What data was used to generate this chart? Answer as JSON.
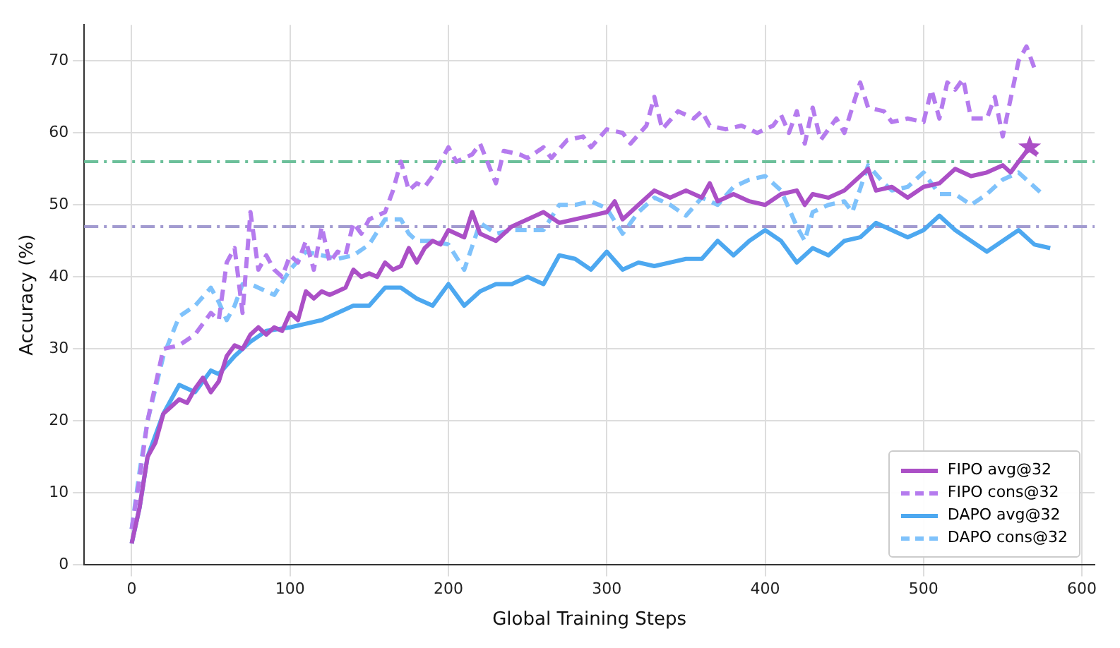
{
  "chart_data": {
    "type": "line",
    "xlabel": "Global Training Steps",
    "ylabel": "Accuracy (%)",
    "xlim": [
      -30,
      608
    ],
    "xticks": [
      0,
      100,
      200,
      300,
      400,
      500,
      600
    ],
    "ylim": [
      0,
      75
    ],
    "yticks": [
      0,
      10,
      20,
      30,
      40,
      50,
      60,
      70
    ],
    "grid": true,
    "legend": "bottom right",
    "series": [
      {
        "name": "FIPO avg@32",
        "color": "#ab4fc6",
        "line_style": "solid",
        "x": [
          0,
          5,
          10,
          15,
          20,
          25,
          30,
          35,
          40,
          45,
          50,
          55,
          60,
          65,
          70,
          75,
          80,
          85,
          90,
          95,
          100,
          105,
          110,
          115,
          120,
          125,
          130,
          135,
          140,
          145,
          150,
          155,
          160,
          165,
          170,
          175,
          180,
          185,
          190,
          195,
          200,
          210,
          215,
          220,
          230,
          240,
          250,
          260,
          270,
          280,
          290,
          300,
          305,
          310,
          320,
          330,
          340,
          350,
          360,
          365,
          370,
          380,
          390,
          400,
          410,
          420,
          425,
          430,
          440,
          450,
          460,
          465,
          470,
          480,
          490,
          500,
          510,
          520,
          530,
          540,
          550,
          555,
          560,
          567,
          572
        ],
        "values": [
          3,
          8,
          15,
          17,
          21,
          22,
          23,
          22.5,
          24.5,
          26,
          24,
          25.5,
          29,
          30.5,
          30,
          32,
          33,
          32,
          33,
          32.5,
          35,
          34,
          38,
          37,
          38,
          37.5,
          38,
          38.5,
          41,
          40,
          40.5,
          40,
          42,
          41,
          41.5,
          44,
          42,
          44,
          45,
          44.5,
          46.5,
          45.5,
          49,
          46,
          45,
          47,
          48,
          49,
          47.5,
          48,
          48.5,
          49,
          50.5,
          48,
          50,
          52,
          51,
          52,
          51,
          53,
          50.5,
          51.5,
          50.5,
          50,
          51.5,
          52,
          50,
          51.5,
          51,
          52,
          54,
          55,
          52,
          52.5,
          51,
          52.5,
          53,
          55,
          54,
          54.5,
          55.5,
          54.5,
          56,
          58,
          57
        ]
      },
      {
        "name": "FIPO cons@32",
        "color": "#b57bee",
        "line_style": "dashed",
        "x": [
          0,
          5,
          10,
          15,
          20,
          30,
          40,
          50,
          55,
          60,
          65,
          70,
          75,
          80,
          85,
          90,
          95,
          100,
          105,
          110,
          115,
          120,
          125,
          130,
          135,
          140,
          145,
          150,
          160,
          165,
          170,
          175,
          180,
          185,
          190,
          200,
          205,
          215,
          220,
          230,
          235,
          245,
          250,
          260,
          265,
          275,
          285,
          290,
          300,
          310,
          315,
          325,
          330,
          335,
          345,
          355,
          360,
          365,
          375,
          385,
          395,
          405,
          410,
          415,
          420,
          425,
          430,
          435,
          445,
          450,
          460,
          465,
          475,
          480,
          490,
          500,
          505,
          510,
          515,
          520,
          525,
          530,
          540,
          545,
          550,
          560,
          565,
          570
        ],
        "values": [
          5,
          12,
          20,
          25,
          30,
          30.5,
          32,
          35,
          34,
          42,
          44,
          35,
          49,
          41,
          43,
          41,
          40,
          43,
          42,
          45,
          41,
          47,
          42,
          43.5,
          43,
          47.5,
          46,
          48,
          49,
          52,
          56,
          52,
          53,
          52.5,
          54,
          58,
          56,
          57,
          58.5,
          53,
          57.5,
          57,
          56.5,
          58,
          56.5,
          59,
          59.5,
          58,
          60.5,
          60,
          58.5,
          61,
          65,
          60.5,
          63,
          62,
          63,
          61,
          60.5,
          61,
          60,
          61,
          62.5,
          60,
          63,
          58.5,
          63.5,
          59,
          62,
          60,
          67,
          63.5,
          63,
          61.5,
          62,
          61.5,
          66,
          62,
          67,
          66,
          67.5,
          62,
          62,
          65,
          59.5,
          70,
          72,
          69
        ]
      },
      {
        "name": "DAPO avg@32",
        "color": "#4da8f0",
        "line_style": "solid",
        "x": [
          0,
          5,
          10,
          20,
          25,
          30,
          40,
          50,
          55,
          65,
          75,
          85,
          100,
          110,
          120,
          130,
          140,
          150,
          160,
          170,
          180,
          190,
          200,
          210,
          220,
          230,
          240,
          250,
          260,
          270,
          280,
          290,
          300,
          310,
          320,
          330,
          340,
          350,
          360,
          370,
          380,
          390,
          400,
          410,
          420,
          430,
          440,
          450,
          460,
          470,
          480,
          490,
          500,
          510,
          520,
          530,
          540,
          550,
          560,
          570,
          580
        ],
        "values": [
          3,
          8,
          15,
          21,
          23,
          25,
          24,
          27,
          26.5,
          29,
          31,
          32.5,
          33,
          33.5,
          34,
          35,
          36,
          36,
          38.5,
          38.5,
          37,
          36,
          39,
          36,
          38,
          39,
          39,
          40,
          39,
          43,
          42.5,
          41,
          43.5,
          41,
          42,
          41.5,
          42,
          42.5,
          42.5,
          45,
          43,
          45,
          46.5,
          45,
          42,
          44,
          43,
          45,
          45.5,
          47.5,
          46.5,
          45.5,
          46.5,
          48.5,
          46.5,
          45,
          43.5,
          45,
          46.5,
          44.5,
          44
        ]
      },
      {
        "name": "DAPO cons@32",
        "color": "#7fc2fb",
        "line_style": "dashed",
        "x": [
          0,
          5,
          10,
          20,
          30,
          40,
          50,
          55,
          60,
          65,
          70,
          75,
          90,
          100,
          110,
          120,
          130,
          140,
          150,
          160,
          170,
          175,
          180,
          190,
          200,
          210,
          220,
          230,
          240,
          250,
          260,
          270,
          280,
          290,
          300,
          310,
          320,
          330,
          340,
          350,
          360,
          370,
          380,
          390,
          400,
          410,
          420,
          425,
          430,
          440,
          450,
          455,
          465,
          475,
          480,
          490,
          500,
          510,
          520,
          530,
          540,
          550,
          560,
          570,
          575
        ],
        "values": [
          5,
          13,
          20,
          29,
          34.5,
          36,
          38.5,
          36.5,
          34,
          36,
          39,
          39,
          37.5,
          41,
          43.5,
          43,
          42.5,
          43,
          44.5,
          48,
          48,
          46,
          45,
          45,
          44.5,
          41,
          47.5,
          46,
          46.5,
          46.5,
          46.5,
          50,
          50,
          50.5,
          49.5,
          46,
          49,
          51,
          50,
          48.5,
          51,
          50,
          52.5,
          53.5,
          54,
          52,
          47,
          45,
          49,
          50,
          50.5,
          49,
          55.5,
          53,
          52,
          52.5,
          54.5,
          51.5,
          51.5,
          50,
          51.5,
          53.5,
          54.5,
          52.5,
          51.5
        ]
      },
      {
        "type": "scatter",
        "color": "#ab4fc6",
        "marker": "star",
        "x": [
          567
        ],
        "values": [
          58
        ]
      }
    ],
    "ref_lines": [
      {
        "axis": "y",
        "value": 47,
        "color": "#a29bd0",
        "line_style": "dashdot"
      },
      {
        "axis": "y",
        "value": 56,
        "color": "#6cc09a",
        "line_style": "dashdot"
      }
    ]
  }
}
